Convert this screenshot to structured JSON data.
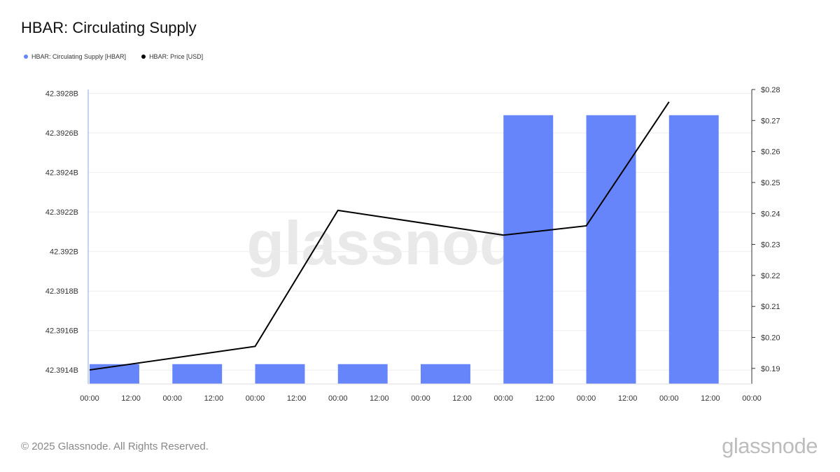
{
  "title": "HBAR: Circulating Supply",
  "legend": [
    {
      "label": "HBAR: Circulating Supply [HBAR]",
      "color": "#6785fb"
    },
    {
      "label": "HBAR: Price [USD]",
      "color": "#000000"
    }
  ],
  "watermark": "glassnode",
  "footer": {
    "copyright": "© 2025 Glassnode. All Rights Reserved.",
    "logo": "glassnode"
  },
  "chart_data": {
    "type": "bar",
    "x_tick_labels": [
      "00:00",
      "12:00",
      "00:00",
      "12:00",
      "00:00",
      "12:00",
      "00:00",
      "12:00",
      "00:00",
      "12:00",
      "00:00",
      "12:00",
      "00:00",
      "12:00",
      "00:00",
      "12:00",
      "00:00"
    ],
    "y_left": {
      "range": [
        42.39133,
        42.39282
      ],
      "ticks": [
        42.3914,
        42.3916,
        42.3918,
        42.392,
        42.3922,
        42.3924,
        42.3926,
        42.3928
      ],
      "tick_labels": [
        "42.3914B",
        "42.3916B",
        "42.3918B",
        "42.392B",
        "42.3922B",
        "42.3924B",
        "42.3926B",
        "42.3928B"
      ]
    },
    "y_right": {
      "range": [
        0.185,
        0.28
      ],
      "ticks": [
        0.19,
        0.2,
        0.21,
        0.22,
        0.23,
        0.24,
        0.25,
        0.26,
        0.27,
        0.28
      ],
      "tick_labels": [
        "$0.19",
        "$0.20",
        "$0.21",
        "$0.22",
        "$0.23",
        "$0.24",
        "$0.25",
        "$0.26",
        "$0.27",
        "$0.28"
      ]
    },
    "series": [
      {
        "name": "HBAR: Circulating Supply [HBAR]",
        "type": "bar",
        "axis": "left",
        "color": "#6785fb",
        "x": [
          0.3,
          1.3,
          2.3,
          3.3,
          4.3,
          5.3,
          6.3,
          7.3
        ],
        "values": [
          42.39143,
          42.39143,
          42.39143,
          42.39143,
          42.39143,
          42.39269,
          42.39269,
          42.39269
        ]
      },
      {
        "name": "HBAR: Price [USD]",
        "type": "line",
        "axis": "right",
        "color": "#000000",
        "x": [
          0,
          2,
          3,
          5,
          6,
          7
        ],
        "values": [
          0.1895,
          0.1971,
          0.241,
          0.233,
          0.236,
          0.276
        ]
      }
    ],
    "grid": true
  }
}
